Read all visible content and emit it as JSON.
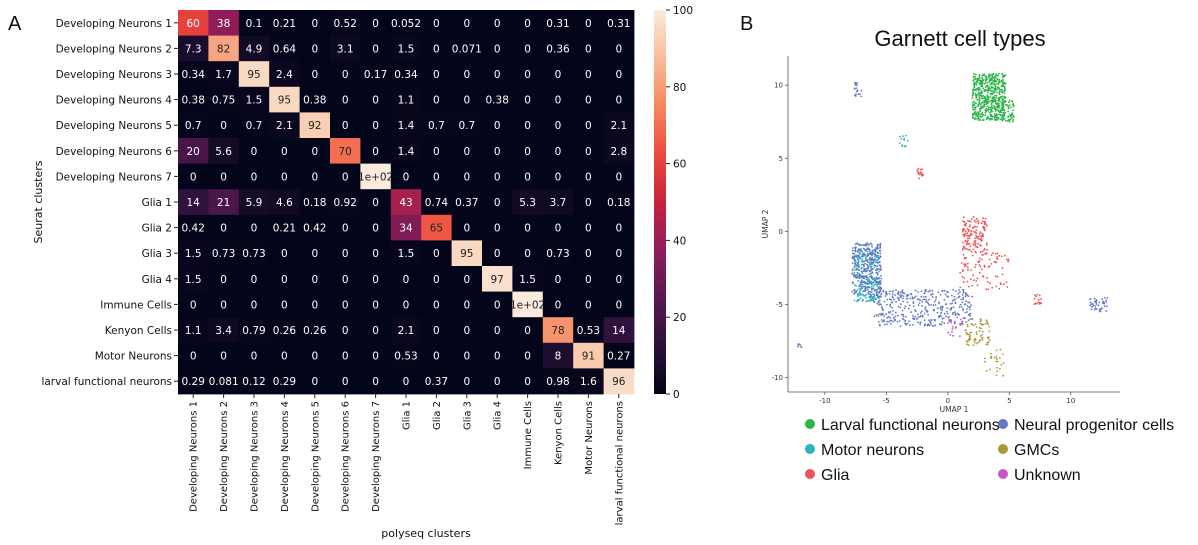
{
  "panels": {
    "a_label": "A",
    "b_label": "B"
  },
  "chart_data": [
    {
      "type": "heatmap",
      "title": "",
      "xlabel": "polyseq clusters",
      "ylabel": "Seurat clusters",
      "rows": [
        "Developing Neurons 1",
        "Developing Neurons 2",
        "Developing Neurons 3",
        "Developing Neurons 4",
        "Developing Neurons 5",
        "Developing Neurons 6",
        "Developing Neurons 7",
        "Glia 1",
        "Glia 2",
        "Glia 3",
        "Glia 4",
        "Immune Cells",
        "Kenyon Cells",
        "Motor Neurons",
        "larval functional neurons"
      ],
      "columns": [
        "Developing Neurons 1",
        "Developing Neurons 2",
        "Developing Neurons 3",
        "Developing Neurons 4",
        "Developing Neurons 5",
        "Developing Neurons 6",
        "Developing Neurons 7",
        "Glia 1",
        "Glia 2",
        "Glia 3",
        "Glia 4",
        "Immune Cells",
        "Kenyon Cells",
        "Motor Neurons",
        "larval functional neurons"
      ],
      "values": [
        [
          60,
          38,
          0.1,
          0.21,
          0,
          0.52,
          0,
          0.052,
          0,
          0,
          0,
          0,
          0.31,
          0,
          0.31
        ],
        [
          7.3,
          82,
          4.9,
          0.64,
          0,
          3.1,
          0,
          1.5,
          0,
          0.071,
          0,
          0,
          0.36,
          0,
          0
        ],
        [
          0.34,
          1.7,
          95,
          2.4,
          0,
          0,
          0.17,
          0.34,
          0,
          0,
          0,
          0,
          0,
          0,
          0
        ],
        [
          0.38,
          0.75,
          1.5,
          95,
          0.38,
          0,
          0,
          1.1,
          0,
          0,
          0.38,
          0,
          0,
          0,
          0
        ],
        [
          0.7,
          0,
          0.7,
          2.1,
          92,
          0,
          0,
          1.4,
          0.7,
          0.7,
          0,
          0,
          0,
          0,
          2.1
        ],
        [
          20,
          5.6,
          0,
          0,
          0,
          70,
          0,
          1.4,
          0,
          0,
          0,
          0,
          0,
          0,
          2.8
        ],
        [
          0,
          0,
          0,
          0,
          0,
          0,
          100,
          0,
          0,
          0,
          0,
          0,
          0,
          0,
          0
        ],
        [
          14,
          21,
          5.9,
          4.6,
          0.18,
          0.92,
          0,
          43,
          0.74,
          0.37,
          0,
          5.3,
          3.7,
          0,
          0.18
        ],
        [
          0.42,
          0,
          0,
          0.21,
          0.42,
          0,
          0,
          34,
          65,
          0,
          0,
          0,
          0,
          0,
          0
        ],
        [
          1.5,
          0.73,
          0.73,
          0,
          0,
          0,
          0,
          1.5,
          0,
          95,
          0,
          0,
          0.73,
          0,
          0
        ],
        [
          1.5,
          0,
          0,
          0,
          0,
          0,
          0,
          0,
          0,
          0,
          97,
          1.5,
          0,
          0,
          0
        ],
        [
          0,
          0,
          0,
          0,
          0,
          0,
          0,
          0,
          0,
          0,
          0,
          100,
          0,
          0,
          0
        ],
        [
          1.1,
          3.4,
          0.79,
          0.26,
          0.26,
          0,
          0,
          2.1,
          0,
          0,
          0,
          0,
          78,
          0.53,
          14
        ],
        [
          0,
          0,
          0,
          0,
          0,
          0,
          0,
          0.53,
          0,
          0,
          0,
          0,
          8,
          91,
          0.27
        ],
        [
          0.29,
          0.081,
          0.12,
          0.29,
          0,
          0,
          0,
          0,
          0.37,
          0,
          0,
          0,
          0.98,
          1.6,
          96
        ]
      ],
      "labels": [
        [
          "60",
          "38",
          "0.1",
          "0.21",
          "0",
          "0.52",
          "0",
          "0.052",
          "0",
          "0",
          "0",
          "0",
          "0.31",
          "0",
          "0.31"
        ],
        [
          "7.3",
          "82",
          "4.9",
          "0.64",
          "0",
          "3.1",
          "0",
          "1.5",
          "0",
          "0.071",
          "0",
          "0",
          "0.36",
          "0",
          "0"
        ],
        [
          "0.34",
          "1.7",
          "95",
          "2.4",
          "0",
          "0",
          "0.17",
          "0.34",
          "0",
          "0",
          "0",
          "0",
          "0",
          "0",
          "0"
        ],
        [
          "0.38",
          "0.75",
          "1.5",
          "95",
          "0.38",
          "0",
          "0",
          "1.1",
          "0",
          "0",
          "0.38",
          "0",
          "0",
          "0",
          "0"
        ],
        [
          "0.7",
          "0",
          "0.7",
          "2.1",
          "92",
          "0",
          "0",
          "1.4",
          "0.7",
          "0.7",
          "0",
          "0",
          "0",
          "0",
          "2.1"
        ],
        [
          "20",
          "5.6",
          "0",
          "0",
          "0",
          "70",
          "0",
          "1.4",
          "0",
          "0",
          "0",
          "0",
          "0",
          "0",
          "2.8"
        ],
        [
          "0",
          "0",
          "0",
          "0",
          "0",
          "0",
          "1e+02",
          "0",
          "0",
          "0",
          "0",
          "0",
          "0",
          "0",
          "0"
        ],
        [
          "14",
          "21",
          "5.9",
          "4.6",
          "0.18",
          "0.92",
          "0",
          "43",
          "0.74",
          "0.37",
          "0",
          "5.3",
          "3.7",
          "0",
          "0.18"
        ],
        [
          "0.42",
          "0",
          "0",
          "0.21",
          "0.42",
          "0",
          "0",
          "34",
          "65",
          "0",
          "0",
          "0",
          "0",
          "0",
          "0"
        ],
        [
          "1.5",
          "0.73",
          "0.73",
          "0",
          "0",
          "0",
          "0",
          "1.5",
          "0",
          "95",
          "0",
          "0",
          "0.73",
          "0",
          "0"
        ],
        [
          "1.5",
          "0",
          "0",
          "0",
          "0",
          "0",
          "0",
          "0",
          "0",
          "0",
          "97",
          "1.5",
          "0",
          "0",
          "0"
        ],
        [
          "0",
          "0",
          "0",
          "0",
          "0",
          "0",
          "0",
          "0",
          "0",
          "0",
          "0",
          "1e+02",
          "0",
          "0",
          "0"
        ],
        [
          "1.1",
          "3.4",
          "0.79",
          "0.26",
          "0.26",
          "0",
          "0",
          "2.1",
          "0",
          "0",
          "0",
          "0",
          "78",
          "0.53",
          "14"
        ],
        [
          "0",
          "0",
          "0",
          "0",
          "0",
          "0",
          "0",
          "0.53",
          "0",
          "0",
          "0",
          "0",
          "8",
          "91",
          "0.27"
        ],
        [
          "0.29",
          "0.081",
          "0.12",
          "0.29",
          "0",
          "0",
          "0",
          "0",
          "0.37",
          "0",
          "0",
          "0",
          "0.98",
          "1.6",
          "96"
        ]
      ],
      "colorbar": {
        "range": [
          0,
          100
        ],
        "ticks": [
          "0",
          "20",
          "40",
          "60",
          "80",
          "100"
        ],
        "colormap": "rocket",
        "stops": [
          "#03051a",
          "#2b1139",
          "#5a1850",
          "#8e1d5b",
          "#c5243f",
          "#ed4a3d",
          "#f6875f",
          "#f8bd9a",
          "#faebdd"
        ]
      }
    },
    {
      "type": "scatter",
      "title": "Garnett cell types",
      "xlabel": "UMAP 1",
      "ylabel": "UMAP 2",
      "xlim": [
        -13,
        14
      ],
      "ylim": [
        -11,
        12
      ],
      "xticks": [
        "-10",
        "-5",
        "0",
        "5",
        "10"
      ],
      "yticks": [
        "10",
        "5",
        "0",
        "-5",
        "-10"
      ],
      "series": [
        {
          "name": "Larval functional neurons",
          "color": "#2db34a",
          "clusters": [
            {
              "x": [
                2.0,
                4.7
              ],
              "y": [
                7.6,
                10.8
              ],
              "points": 560
            },
            {
              "x": [
                4.4,
                5.4
              ],
              "y": [
                7.5,
                9.0
              ],
              "points": 60
            }
          ]
        },
        {
          "name": "Motor neurons",
          "color": "#2bb3c0",
          "clusters": [
            {
              "x": [
                -7.6,
                -5.6
              ],
              "y": [
                -4.8,
                -1.2
              ],
              "points": 240
            },
            {
              "x": [
                -4.0,
                -3.2
              ],
              "y": [
                5.8,
                6.6
              ],
              "points": 12
            }
          ]
        },
        {
          "name": "Glia",
          "color": "#ec5456",
          "clusters": [
            {
              "x": [
                1.2,
                3.2
              ],
              "y": [
                -1.5,
                1.0
              ],
              "points": 140
            },
            {
              "x": [
                1.0,
                5.0
              ],
              "y": [
                -4.0,
                -1.5
              ],
              "points": 90
            },
            {
              "x": [
                -2.5,
                -2.0
              ],
              "y": [
                3.6,
                4.3
              ],
              "points": 18
            },
            {
              "x": [
                7.0,
                7.6
              ],
              "y": [
                -5.0,
                -4.2
              ],
              "points": 18
            }
          ]
        },
        {
          "name": "Neural progenitor cells",
          "color": "#6479c4",
          "clusters": [
            {
              "x": [
                -7.8,
                -5.4
              ],
              "y": [
                -4.5,
                -0.8
              ],
              "points": 320
            },
            {
              "x": [
                -6.0,
                2.0
              ],
              "y": [
                -6.5,
                -4.0
              ],
              "points": 380
            },
            {
              "x": [
                -7.6,
                -7.0
              ],
              "y": [
                9.2,
                10.2
              ],
              "points": 20
            },
            {
              "x": [
                11.5,
                13.0
              ],
              "y": [
                -5.5,
                -4.5
              ],
              "points": 45
            },
            {
              "x": [
                -12.2,
                -11.8
              ],
              "y": [
                -8.0,
                -7.7
              ],
              "points": 8
            }
          ]
        },
        {
          "name": "GMCs",
          "color": "#a89a34",
          "clusters": [
            {
              "x": [
                1.5,
                3.4
              ],
              "y": [
                -7.8,
                -6.0
              ],
              "points": 70
            },
            {
              "x": [
                3.0,
                4.6
              ],
              "y": [
                -10.0,
                -8.0
              ],
              "points": 25
            }
          ]
        },
        {
          "name": "Unknown",
          "color": "#c657c3",
          "clusters": [
            {
              "x": [
                0.0,
                1.5
              ],
              "y": [
                -7.2,
                -5.8
              ],
              "points": 25
            }
          ]
        }
      ]
    }
  ]
}
